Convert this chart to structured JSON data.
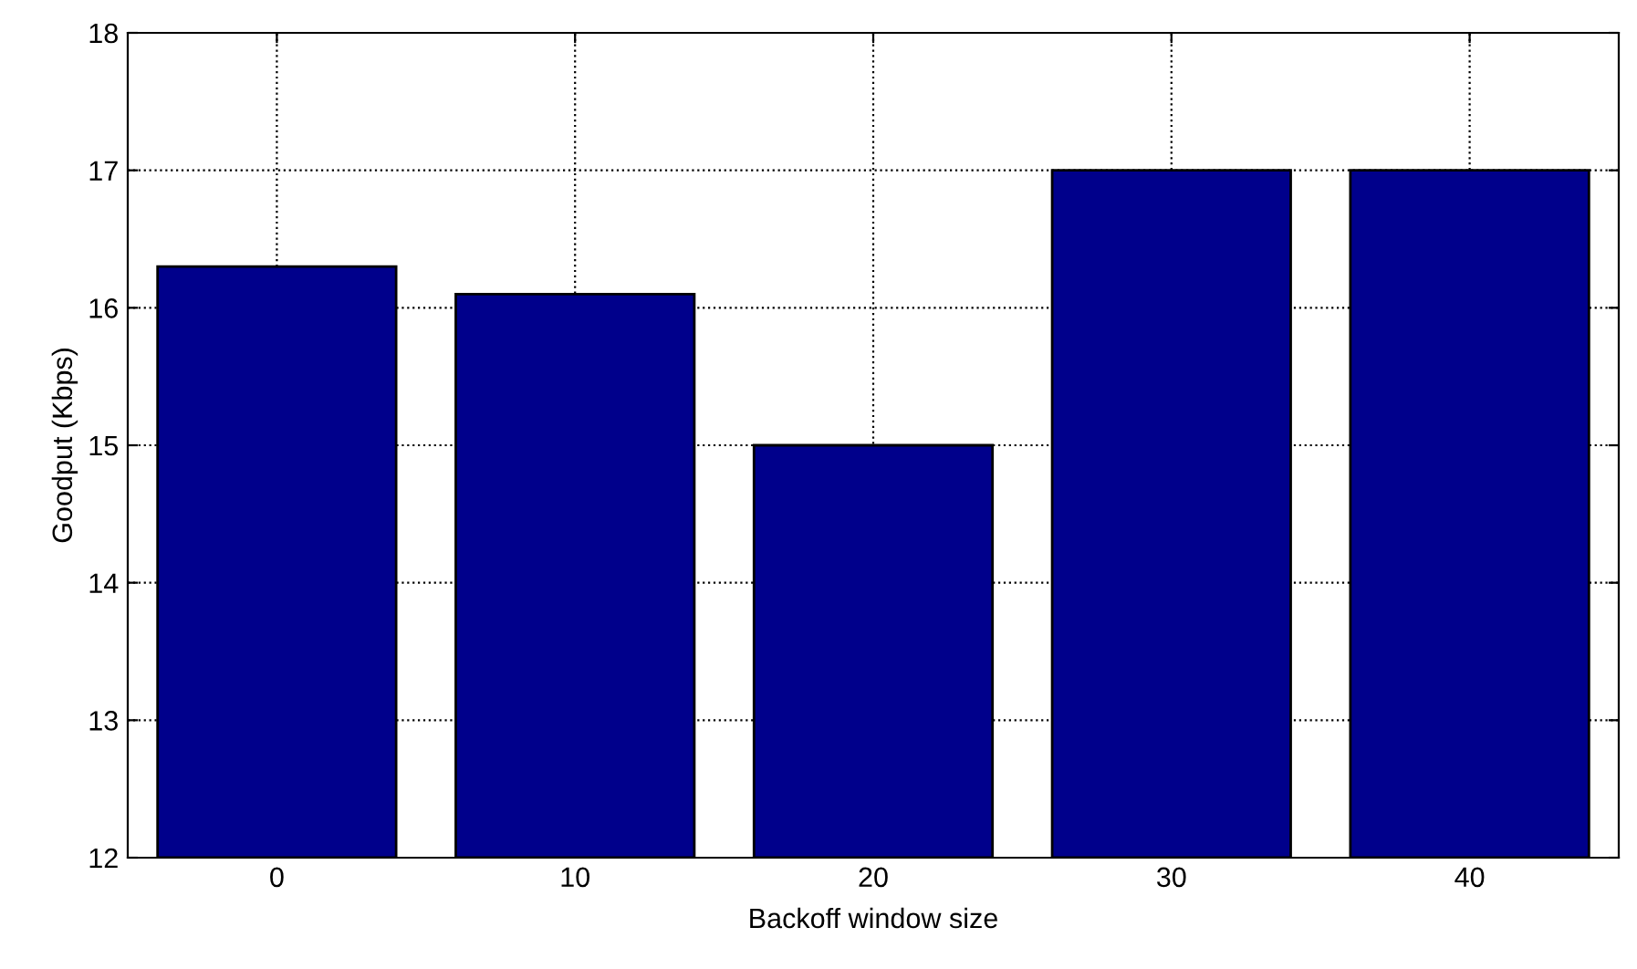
{
  "chart_data": {
    "type": "bar",
    "xlabel": "Backoff window size",
    "ylabel": "Goodput (Kbps)",
    "categories": [
      "0",
      "10",
      "20",
      "30",
      "40"
    ],
    "values": [
      16.3,
      16.1,
      15.0,
      17.0,
      17.0
    ],
    "color": "#00008b",
    "ylim": [
      12,
      18
    ],
    "yticks": [
      12,
      13,
      14,
      15,
      16,
      17,
      18
    ],
    "grid": true,
    "legend": false
  }
}
